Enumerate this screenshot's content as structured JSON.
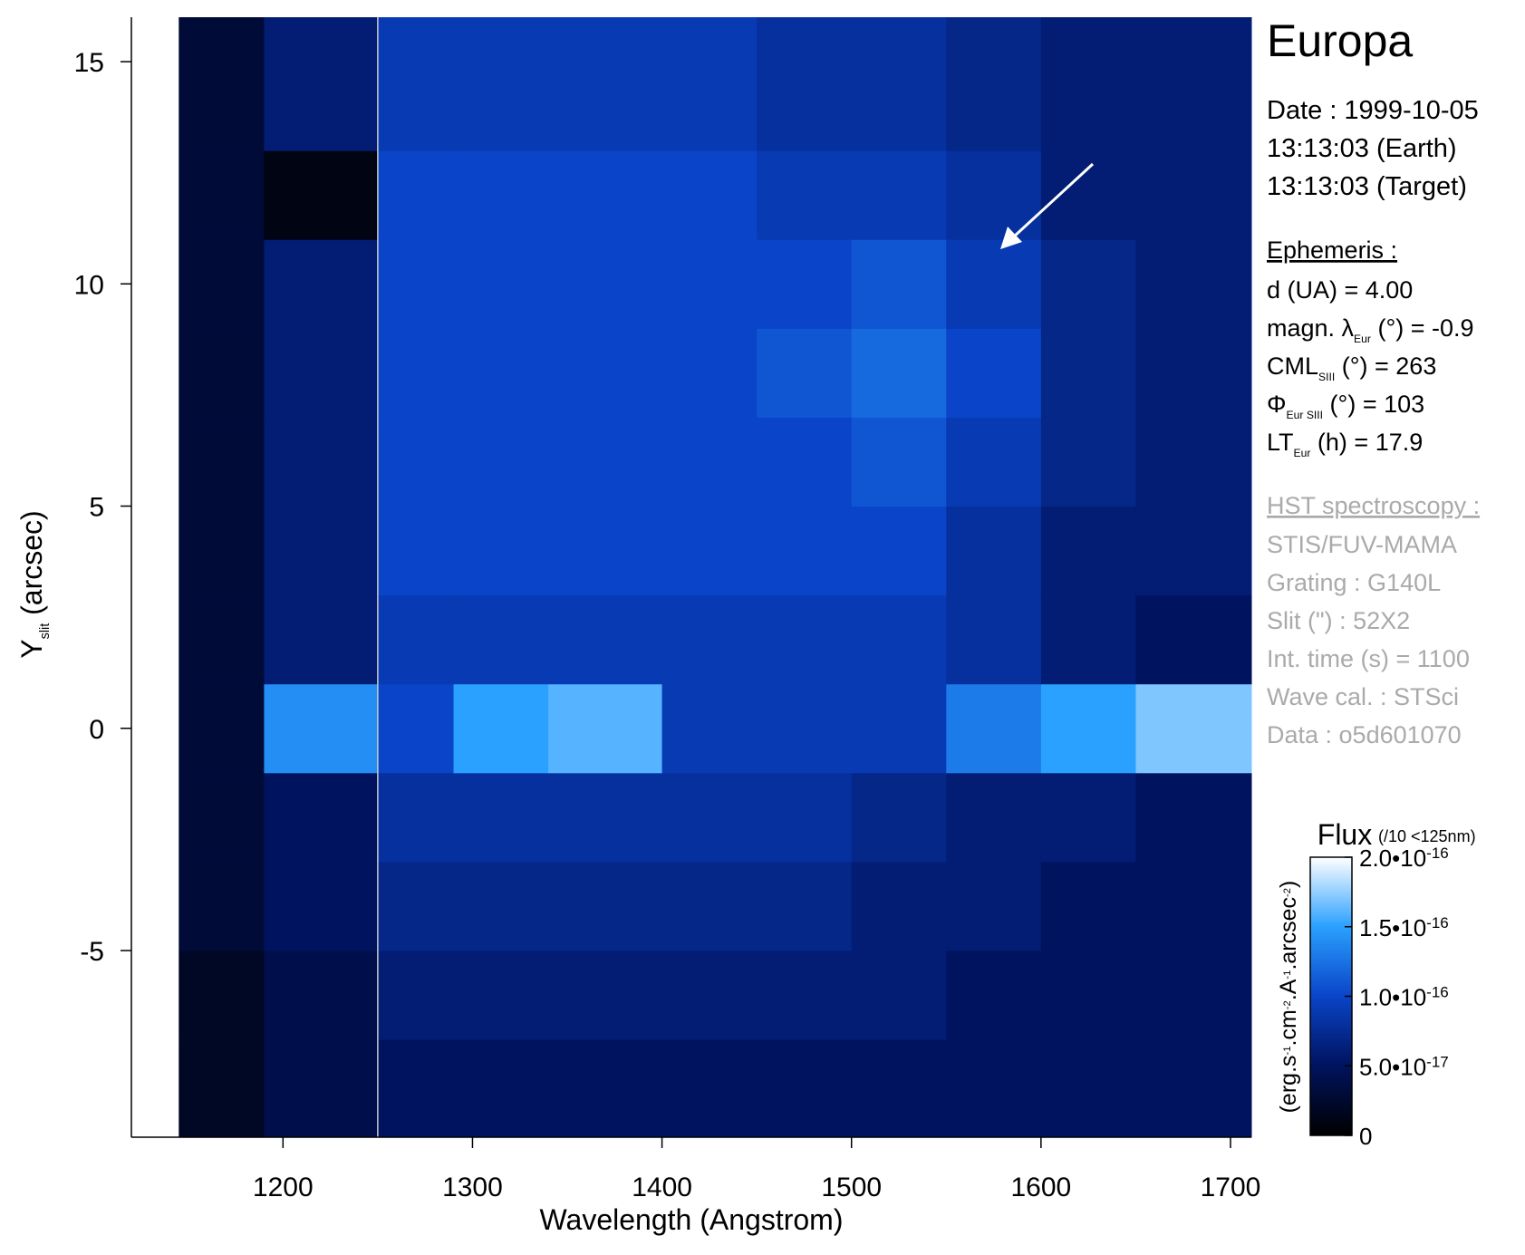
{
  "chart_data": {
    "type": "heatmap",
    "title": "Europa",
    "x_label": "Wavelength (Angstrom)",
    "y_label": [
      "Y",
      "slit",
      " (arcsec)"
    ],
    "xlim": [
      1120,
      1711
    ],
    "xticks": [
      1200,
      1300,
      1400,
      1500,
      1600,
      1700
    ],
    "ylim": [
      -9.2,
      16
    ],
    "yticks": [
      -5,
      0,
      5,
      10,
      15
    ],
    "x_edges": [
      1120,
      1145,
      1190,
      1250,
      1290,
      1340,
      1400,
      1450,
      1500,
      1550,
      1600,
      1650,
      1711
    ],
    "y_edges": [
      -9.2,
      -7,
      -5,
      -3,
      -1,
      1,
      3,
      5,
      7,
      9,
      11,
      13,
      16
    ],
    "z": [
      [
        2e-16,
        2e-17,
        4e-17,
        5e-17,
        5e-17,
        5e-17,
        5e-17,
        5e-17,
        5e-17,
        5e-17,
        5e-17,
        5e-17
      ],
      [
        2e-16,
        2e-17,
        4e-17,
        6e-17,
        6e-17,
        6e-17,
        6e-17,
        6e-17,
        6e-17,
        5e-17,
        5e-17,
        5e-17
      ],
      [
        2e-16,
        3e-17,
        5e-17,
        7e-17,
        7e-17,
        7e-17,
        7e-17,
        7e-17,
        6e-17,
        6e-17,
        5e-17,
        5e-17
      ],
      [
        2e-16,
        3e-17,
        5e-17,
        8e-17,
        8e-17,
        8e-17,
        8e-17,
        8e-17,
        7e-17,
        6e-17,
        6e-17,
        5e-17
      ],
      [
        2e-16,
        3e-17,
        1.4e-16,
        1e-16,
        1.5e-16,
        1.6e-16,
        9e-17,
        9e-17,
        9e-17,
        1.3e-16,
        1.5e-16,
        1.7e-16
      ],
      [
        2e-16,
        3e-17,
        6e-17,
        9e-17,
        9e-17,
        9e-17,
        9e-17,
        9e-17,
        9e-17,
        8e-17,
        6e-17,
        5e-17
      ],
      [
        2e-16,
        3e-17,
        6e-17,
        1e-16,
        1e-16,
        1e-16,
        1e-16,
        1e-16,
        1e-16,
        8e-17,
        6e-17,
        6e-17
      ],
      [
        2e-16,
        3e-17,
        6e-17,
        1e-16,
        1e-16,
        1e-16,
        1e-16,
        1e-16,
        1.1e-16,
        9e-17,
        7e-17,
        6e-17
      ],
      [
        2e-16,
        3e-17,
        6e-17,
        1e-16,
        1e-16,
        1e-16,
        1e-16,
        1.1e-16,
        1.2e-16,
        1e-16,
        7e-17,
        6e-17
      ],
      [
        2e-16,
        3e-17,
        6e-17,
        1e-16,
        1e-16,
        1e-16,
        1e-16,
        1e-16,
        1.1e-16,
        9e-17,
        7e-17,
        6e-17
      ],
      [
        2e-16,
        3e-17,
        1e-17,
        1e-16,
        1e-16,
        1e-16,
        1e-16,
        9e-17,
        9e-17,
        8e-17,
        6e-17,
        6e-17
      ],
      [
        2e-16,
        3e-17,
        6e-17,
        9e-17,
        9e-17,
        9e-17,
        9e-17,
        8e-17,
        8e-17,
        7e-17,
        6e-17,
        6e-17
      ]
    ],
    "colormap": [
      "#000000",
      "#00135e",
      "#0a44c8",
      "#2aa0ff",
      "#ffffff"
    ],
    "colorbar_title": "Flux",
    "colorbar_note": "(/10 <125nm)",
    "colorbar_label": [
      "(erg.s",
      "-1",
      ".cm",
      "-2",
      ".A",
      "-1",
      ".arcsec",
      "-2",
      ")"
    ],
    "zlim": [
      0,
      2e-16
    ],
    "zticks": [
      {
        "value": 0,
        "label": "0"
      },
      {
        "value": 5e-17,
        "label": "5.0•10",
        "exponent": "-17"
      },
      {
        "value": 1e-16,
        "label": "1.0•10",
        "exponent": "-16"
      },
      {
        "value": 1.5e-16,
        "label": "1.5•10",
        "exponent": "-16"
      },
      {
        "value": 2e-16,
        "label": "2.0•10",
        "exponent": "-16"
      }
    ],
    "date_lines": [
      "Date : 1999-10-05",
      "13:13:03 (Earth)",
      "13:13:03 (Target)"
    ],
    "ephemeris_title": "Ephemeris :",
    "ephemeris": [
      [
        "d (UA)     = 4.00"
      ],
      [
        "magn. λ",
        "Eur",
        " (°)  = -0.9"
      ],
      [
        "CML",
        "SIII",
        " (°) = 263"
      ],
      [
        "Φ",
        "Eur SIII",
        " (°) = 103"
      ],
      [
        "LT",
        "Eur",
        " (h) = 17.9"
      ]
    ],
    "hst_title": "HST spectroscopy :",
    "hst_lines": [
      "STIS/FUV-MAMA",
      "Grating : G140L",
      "Slit (\") : 52X2",
      "Int. time (s) = 1100",
      "Wave cal. : STSci",
      "Data : o5d601070"
    ]
  }
}
